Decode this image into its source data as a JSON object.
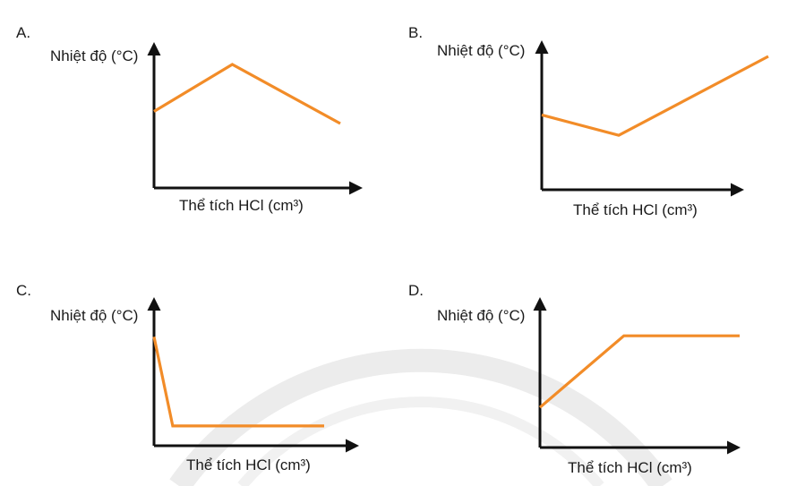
{
  "line_color": "#F28C28",
  "chart_data": [
    {
      "type": "line",
      "panel_label": "A.",
      "ylabel": "Nhiệt độ (°C)",
      "xlabel": "Thể tích HCl (cm³)",
      "x": [
        0,
        0.42,
        1
      ],
      "y": [
        0.57,
        0.92,
        0.48
      ]
    },
    {
      "type": "line",
      "panel_label": "B.",
      "ylabel": "Nhiệt độ (°C)",
      "xlabel": "Thể tích HCl (cm³)",
      "x": [
        0,
        0.34,
        1
      ],
      "y": [
        0.55,
        0.4,
        0.98
      ]
    },
    {
      "type": "line",
      "panel_label": "C.",
      "ylabel": "Nhiệt độ (°C)",
      "xlabel": "Thể tích HCl (cm³)",
      "x": [
        0,
        0.11,
        1
      ],
      "y": [
        0.77,
        0.14,
        0.14
      ]
    },
    {
      "type": "line",
      "panel_label": "D.",
      "ylabel": "Nhiệt độ (°C)",
      "xlabel": "Thể tích HCl (cm³)",
      "x": [
        0,
        0.42,
        1
      ],
      "y": [
        0.28,
        0.78,
        0.78
      ]
    }
  ]
}
